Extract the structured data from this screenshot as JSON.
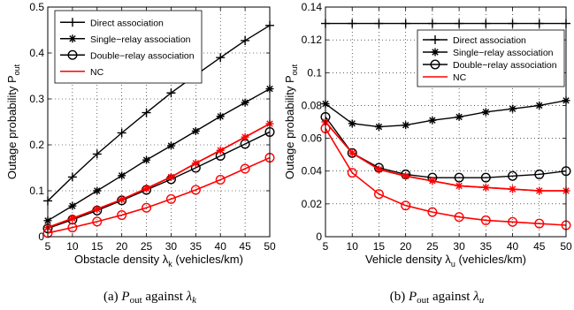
{
  "chart_data": [
    {
      "type": "line",
      "caption": "(a)  P_out against λ_k",
      "caption_parts": {
        "prefix": "(a)",
        "var": "P",
        "var_sub": "out",
        "middle": "against",
        "sym": "λ",
        "sym_sub": "k"
      },
      "xlabel": "Obstacle density λ_k (vehicles/km)",
      "xlabel_parts": {
        "text": "Obstacle density λ",
        "sub": "k",
        "tail": " (vehicles/km)"
      },
      "ylabel": "Outage probability P_out",
      "ylabel_parts": {
        "text": "Outage probability P",
        "sub": "out"
      },
      "x": [
        5,
        10,
        15,
        20,
        25,
        30,
        35,
        40,
        45,
        50
      ],
      "xlim": [
        5,
        50
      ],
      "ylim": [
        0,
        0.5
      ],
      "xticks": [
        "5",
        "10",
        "15",
        "20",
        "25",
        "30",
        "35",
        "40",
        "45",
        "50"
      ],
      "yticks": [
        "0",
        "0.1",
        "0.2",
        "0.3",
        "0.4",
        "0.5"
      ],
      "ytick_values": [
        0,
        0.1,
        0.2,
        0.3,
        0.4,
        0.5
      ],
      "grid": true,
      "legend_position": "top-left",
      "series": [
        {
          "name": "Direct association",
          "color": "#000000",
          "marker": "plus",
          "values": [
            0.078,
            0.13,
            0.18,
            0.226,
            0.27,
            0.313,
            0.352,
            0.39,
            0.427,
            0.46
          ]
        },
        {
          "name": "Single−relay association",
          "color": "#000000",
          "marker": "star",
          "values": [
            0.035,
            0.067,
            0.1,
            0.133,
            0.167,
            0.198,
            0.23,
            0.262,
            0.292,
            0.322
          ]
        },
        {
          "name": "Double−relay association",
          "color": "#000000",
          "marker": "circle",
          "values": [
            0.018,
            0.037,
            0.057,
            0.079,
            0.102,
            0.125,
            0.15,
            0.176,
            0.202,
            0.228
          ]
        },
        {
          "name": "NC",
          "color": "#ff0000",
          "marker": "none",
          "values": [
            0.02,
            0.04,
            0.06,
            0.081,
            0.105,
            0.13,
            0.16,
            0.188,
            0.217,
            0.246
          ]
        }
      ],
      "extra_series": [
        {
          "color": "#ff0000",
          "marker": "star",
          "values": [
            0.02,
            0.04,
            0.06,
            0.081,
            0.105,
            0.13,
            0.16,
            0.188,
            0.217,
            0.246
          ]
        },
        {
          "color": "#ff0000",
          "marker": "circle",
          "values": [
            0.008,
            0.02,
            0.033,
            0.047,
            0.063,
            0.082,
            0.102,
            0.124,
            0.148,
            0.172
          ]
        }
      ]
    },
    {
      "type": "line",
      "caption": "(b)  P_out against λ_u",
      "caption_parts": {
        "prefix": "(b)",
        "var": "P",
        "var_sub": "out",
        "middle": "against",
        "sym": "λ",
        "sym_sub": "u"
      },
      "xlabel": "Vehicle density λ_u (vehicles/km)",
      "xlabel_parts": {
        "text": "Vehicle density λ",
        "sub": "u",
        "tail": " (vehicles/km)"
      },
      "ylabel": "Outage probability P_out",
      "ylabel_parts": {
        "text": "Outage probability P",
        "sub": "out"
      },
      "x": [
        5,
        10,
        15,
        20,
        25,
        30,
        35,
        40,
        45,
        50
      ],
      "xlim": [
        5,
        50
      ],
      "ylim": [
        0,
        0.14
      ],
      "xticks": [
        "5",
        "10",
        "15",
        "20",
        "25",
        "30",
        "35",
        "40",
        "45",
        "50"
      ],
      "yticks": [
        "0",
        "0.02",
        "0.04",
        "0.06",
        "0.08",
        "0.1",
        "0.12",
        "0.14"
      ],
      "ytick_values": [
        0,
        0.02,
        0.04,
        0.06,
        0.08,
        0.1,
        0.12,
        0.14
      ],
      "grid": true,
      "legend_position": "top-right",
      "series": [
        {
          "name": "Direct association",
          "color": "#000000",
          "marker": "plus",
          "values": [
            0.13,
            0.13,
            0.13,
            0.13,
            0.13,
            0.13,
            0.13,
            0.13,
            0.13,
            0.13
          ]
        },
        {
          "name": "Single−relay association",
          "color": "#000000",
          "marker": "star",
          "values": [
            0.081,
            0.069,
            0.067,
            0.068,
            0.071,
            0.073,
            0.076,
            0.078,
            0.08,
            0.083
          ]
        },
        {
          "name": "Double−relay association",
          "color": "#000000",
          "marker": "circle",
          "values": [
            0.073,
            0.051,
            0.042,
            0.038,
            0.036,
            0.036,
            0.036,
            0.037,
            0.038,
            0.04
          ]
        },
        {
          "name": "NC",
          "color": "#ff0000",
          "marker": "none",
          "values": [
            0.07,
            0.051,
            0.041,
            0.037,
            0.034,
            0.031,
            0.03,
            0.029,
            0.028,
            0.028
          ]
        }
      ],
      "extra_series": [
        {
          "color": "#ff0000",
          "marker": "star",
          "values": [
            0.07,
            0.051,
            0.041,
            0.037,
            0.034,
            0.031,
            0.03,
            0.029,
            0.028,
            0.028
          ]
        },
        {
          "color": "#ff0000",
          "marker": "circle",
          "values": [
            0.066,
            0.039,
            0.026,
            0.019,
            0.015,
            0.012,
            0.01,
            0.009,
            0.008,
            0.007
          ]
        }
      ]
    }
  ]
}
